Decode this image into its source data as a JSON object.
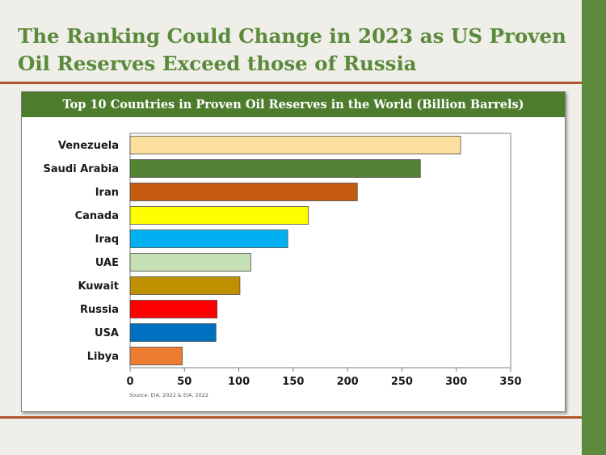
{
  "slide": {
    "title_line1": "The Ranking Could Change in 2023 as US Proven",
    "title_line2": "Oil Reserves Exceed those of Russia"
  },
  "chart_data": {
    "type": "bar",
    "orientation": "horizontal",
    "title": "Top 10 Countries in Proven Oil Reserves in the World (Billion Barrels)",
    "source": "Source: EIA, 2022 & EIA, 2022",
    "categories": [
      "Venezuela",
      "Saudi Arabia",
      "Iran",
      "Canada",
      "Iraq",
      "UAE",
      "Kuwait",
      "Russia",
      "USA",
      "Libya"
    ],
    "values": [
      304,
      267,
      209,
      164,
      145,
      111,
      101,
      80,
      79,
      48
    ],
    "colors": [
      "#fcdf9e",
      "#548235",
      "#c55a11",
      "#ffff00",
      "#00b0f0",
      "#c5e0b4",
      "#bf9000",
      "#ff0000",
      "#0070c0",
      "#ed7d31"
    ],
    "xlim": [
      0,
      350
    ],
    "xticks": [
      0,
      50,
      100,
      150,
      200,
      250,
      300,
      350
    ],
    "grid": false,
    "legend": "none"
  }
}
